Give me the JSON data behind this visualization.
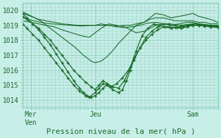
{
  "title": "Pression niveau de la mer( hPa )",
  "xlabel_ticks": [
    "Mer\nVen",
    "Jeu",
    "Sam"
  ],
  "xlabel_tick_positions": [
    0.04,
    0.37,
    0.87
  ],
  "ylim": [
    1013.5,
    1020.5
  ],
  "yticks": [
    1014,
    1015,
    1016,
    1017,
    1018,
    1019,
    1020
  ],
  "bg_color": "#c8eee8",
  "grid_color": "#88ccbb",
  "line_color": "#1a6b2a",
  "marker_color": "#1a6b2a",
  "series": [
    {
      "x": [
        0,
        0.04,
        0.08,
        0.12,
        0.16,
        0.2,
        0.24,
        0.28,
        0.32,
        0.37,
        0.4,
        0.44,
        0.48,
        0.52,
        0.55,
        0.58,
        0.62,
        0.65,
        0.68,
        0.72,
        0.76,
        0.8,
        0.84,
        0.87,
        0.9,
        0.93,
        0.96,
        1.0
      ],
      "y": [
        1019.8,
        1019.6,
        1019.4,
        1019.3,
        1019.2,
        1019.1,
        1019.05,
        1019.0,
        1019.0,
        1019.0,
        1019.0,
        1019.0,
        1018.95,
        1019.0,
        1019.0,
        1019.1,
        1019.2,
        1019.5,
        1019.8,
        1019.7,
        1019.5,
        1019.6,
        1019.7,
        1019.8,
        1019.6,
        1019.5,
        1019.4,
        1019.2
      ],
      "markers": false
    },
    {
      "x": [
        0,
        0.04,
        0.09,
        0.14,
        0.2,
        0.25,
        0.3,
        0.35,
        0.37,
        0.4,
        0.44,
        0.48,
        0.52,
        0.56,
        0.6,
        0.64,
        0.68,
        0.72,
        0.76,
        0.8,
        0.84,
        0.87,
        0.9,
        0.93,
        0.96,
        1.0
      ],
      "y": [
        1019.5,
        1019.35,
        1019.2,
        1019.1,
        1019.05,
        1019.0,
        1018.95,
        1019.0,
        1019.0,
        1019.1,
        1019.0,
        1018.9,
        1018.85,
        1018.9,
        1019.0,
        1019.15,
        1019.2,
        1019.1,
        1019.0,
        1019.1,
        1019.2,
        1019.2,
        1019.1,
        1019.05,
        1019.0,
        1019.0
      ],
      "markers": false
    },
    {
      "x": [
        0,
        0.04,
        0.08,
        0.12,
        0.16,
        0.2,
        0.25,
        0.3,
        0.34,
        0.37,
        0.4,
        0.44,
        0.48,
        0.52,
        0.55,
        0.58,
        0.62,
        0.65,
        0.68,
        0.72,
        0.76,
        0.8,
        0.84,
        0.87,
        0.9,
        0.93,
        0.96,
        1.0
      ],
      "y": [
        1019.3,
        1019.2,
        1019.1,
        1019.0,
        1018.9,
        1018.7,
        1018.5,
        1018.3,
        1018.2,
        1018.5,
        1018.8,
        1019.1,
        1019.0,
        1018.9,
        1018.7,
        1018.5,
        1018.6,
        1018.8,
        1019.0,
        1019.1,
        1019.0,
        1018.9,
        1019.0,
        1019.1,
        1019.05,
        1019.0,
        1018.95,
        1018.9
      ],
      "markers": false
    },
    {
      "x": [
        0,
        0.03,
        0.06,
        0.09,
        0.12,
        0.15,
        0.19,
        0.23,
        0.27,
        0.31,
        0.35,
        0.37,
        0.4,
        0.43,
        0.46,
        0.49,
        0.52,
        0.55,
        0.58,
        0.62,
        0.65,
        0.68,
        0.72,
        0.75,
        0.78,
        0.8,
        0.84,
        0.87,
        0.9,
        0.93,
        0.96,
        1.0
      ],
      "y": [
        1019.9,
        1019.7,
        1019.5,
        1019.3,
        1019.0,
        1018.7,
        1018.3,
        1017.9,
        1017.5,
        1017.0,
        1016.6,
        1016.5,
        1016.6,
        1016.9,
        1017.3,
        1017.8,
        1018.2,
        1018.6,
        1019.0,
        1019.2,
        1019.4,
        1019.5,
        1019.5,
        1019.4,
        1019.3,
        1019.3,
        1019.3,
        1019.3,
        1019.2,
        1019.2,
        1019.1,
        1019.1
      ],
      "markers": false
    },
    {
      "x": [
        0,
        0.02,
        0.05,
        0.08,
        0.11,
        0.14,
        0.17,
        0.2,
        0.23,
        0.26,
        0.29,
        0.32,
        0.35,
        0.37,
        0.39,
        0.41,
        0.43,
        0.46,
        0.49,
        0.52,
        0.55,
        0.58,
        0.61,
        0.64,
        0.67,
        0.7,
        0.73,
        0.76,
        0.79,
        0.82,
        0.85,
        0.87,
        0.9,
        0.93,
        0.96,
        1.0
      ],
      "y": [
        1019.6,
        1019.4,
        1019.1,
        1018.8,
        1018.4,
        1018.0,
        1017.5,
        1017.0,
        1016.5,
        1016.0,
        1015.6,
        1015.2,
        1014.9,
        1014.7,
        1015.0,
        1015.3,
        1015.1,
        1014.9,
        1014.8,
        1015.3,
        1016.2,
        1017.3,
        1018.3,
        1018.8,
        1019.1,
        1019.0,
        1018.9,
        1018.8,
        1018.85,
        1018.9,
        1019.0,
        1019.0,
        1019.0,
        1018.95,
        1018.9,
        1018.9
      ],
      "markers": true
    },
    {
      "x": [
        0,
        0.02,
        0.05,
        0.08,
        0.11,
        0.14,
        0.17,
        0.2,
        0.23,
        0.26,
        0.29,
        0.32,
        0.34,
        0.37,
        0.39,
        0.41,
        0.43,
        0.46,
        0.49,
        0.51,
        0.53,
        0.55,
        0.57,
        0.6,
        0.63,
        0.66,
        0.69,
        0.72,
        0.75,
        0.78,
        0.81,
        0.84,
        0.87,
        0.9,
        0.93,
        0.96,
        1.0
      ],
      "y": [
        1019.1,
        1018.8,
        1018.4,
        1018.0,
        1017.5,
        1017.0,
        1016.5,
        1016.0,
        1015.5,
        1015.0,
        1014.6,
        1014.3,
        1014.2,
        1014.5,
        1014.8,
        1015.1,
        1015.0,
        1014.7,
        1014.5,
        1014.7,
        1015.3,
        1016.0,
        1016.8,
        1017.5,
        1018.0,
        1018.4,
        1018.7,
        1018.9,
        1018.9,
        1018.85,
        1018.8,
        1018.9,
        1019.0,
        1019.0,
        1018.95,
        1018.9,
        1018.85
      ],
      "markers": true
    },
    {
      "x": [
        0,
        0.02,
        0.05,
        0.08,
        0.11,
        0.14,
        0.17,
        0.2,
        0.23,
        0.26,
        0.29,
        0.31,
        0.33,
        0.35,
        0.37,
        0.39,
        0.41,
        0.43,
        0.45,
        0.48,
        0.51,
        0.54,
        0.57,
        0.6,
        0.63,
        0.66,
        0.69,
        0.72,
        0.75,
        0.78,
        0.81,
        0.84,
        0.87,
        0.9,
        0.93,
        0.96,
        1.0
      ],
      "y": [
        1019.8,
        1019.5,
        1019.1,
        1018.7,
        1018.2,
        1017.7,
        1017.1,
        1016.5,
        1015.9,
        1015.3,
        1014.8,
        1014.5,
        1014.3,
        1014.2,
        1014.3,
        1014.5,
        1014.8,
        1015.0,
        1014.9,
        1015.1,
        1015.5,
        1016.0,
        1016.7,
        1017.5,
        1018.2,
        1018.6,
        1018.9,
        1019.1,
        1019.1,
        1019.05,
        1019.0,
        1019.05,
        1019.1,
        1019.1,
        1019.05,
        1019.0,
        1018.95
      ],
      "markers": true
    }
  ]
}
